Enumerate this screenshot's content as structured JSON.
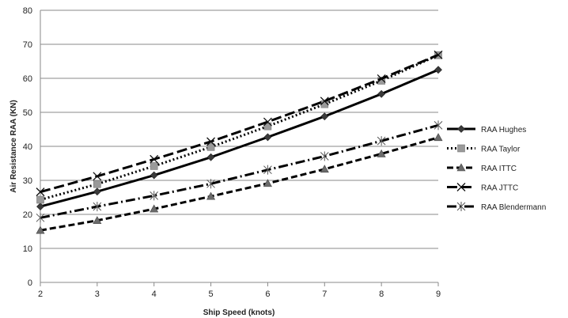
{
  "chart_data": {
    "type": "line",
    "xlabel": "Ship Speed (knots)",
    "ylabel": "Air Resistance  RAA  (KN)",
    "x": [
      2,
      3,
      4,
      5,
      6,
      7,
      8,
      9
    ],
    "xlim": [
      2,
      9
    ],
    "ylim": [
      0,
      80
    ],
    "yticks": [
      0,
      10,
      20,
      30,
      40,
      50,
      60,
      70,
      80
    ],
    "xticks": [
      2,
      3,
      4,
      5,
      6,
      7,
      8,
      9
    ],
    "grid": "horizontal",
    "legend_position": "right",
    "series": [
      {
        "name": "RAA Hughes",
        "values": [
          22.3,
          26.7,
          31.5,
          36.8,
          42.7,
          48.8,
          55.4,
          62.5
        ],
        "marker": "diamond",
        "dash": "solid",
        "color": "#000000"
      },
      {
        "name": "RAA Taylor",
        "values": [
          24.3,
          28.9,
          34.2,
          39.8,
          45.9,
          52.4,
          59.3,
          66.8
        ],
        "marker": "square",
        "dash": "dotted",
        "color": "#000000"
      },
      {
        "name": "RAA ITTC",
        "values": [
          15.3,
          18.2,
          21.6,
          25.3,
          29.1,
          33.3,
          37.8,
          42.6
        ],
        "marker": "triangle",
        "dash": "dashed",
        "color": "#000000"
      },
      {
        "name": "RAA JTTC",
        "values": [
          26.6,
          31.2,
          36.2,
          41.4,
          47.2,
          53.3,
          59.9,
          66.9
        ],
        "marker": "x",
        "dash": "longdash",
        "color": "#000000"
      },
      {
        "name": "RAA Blendermann",
        "values": [
          19.0,
          22.3,
          25.5,
          29.0,
          33.1,
          37.1,
          41.6,
          46.2
        ],
        "marker": "asterisk",
        "dash": "dashdot",
        "color": "#000000"
      }
    ]
  }
}
